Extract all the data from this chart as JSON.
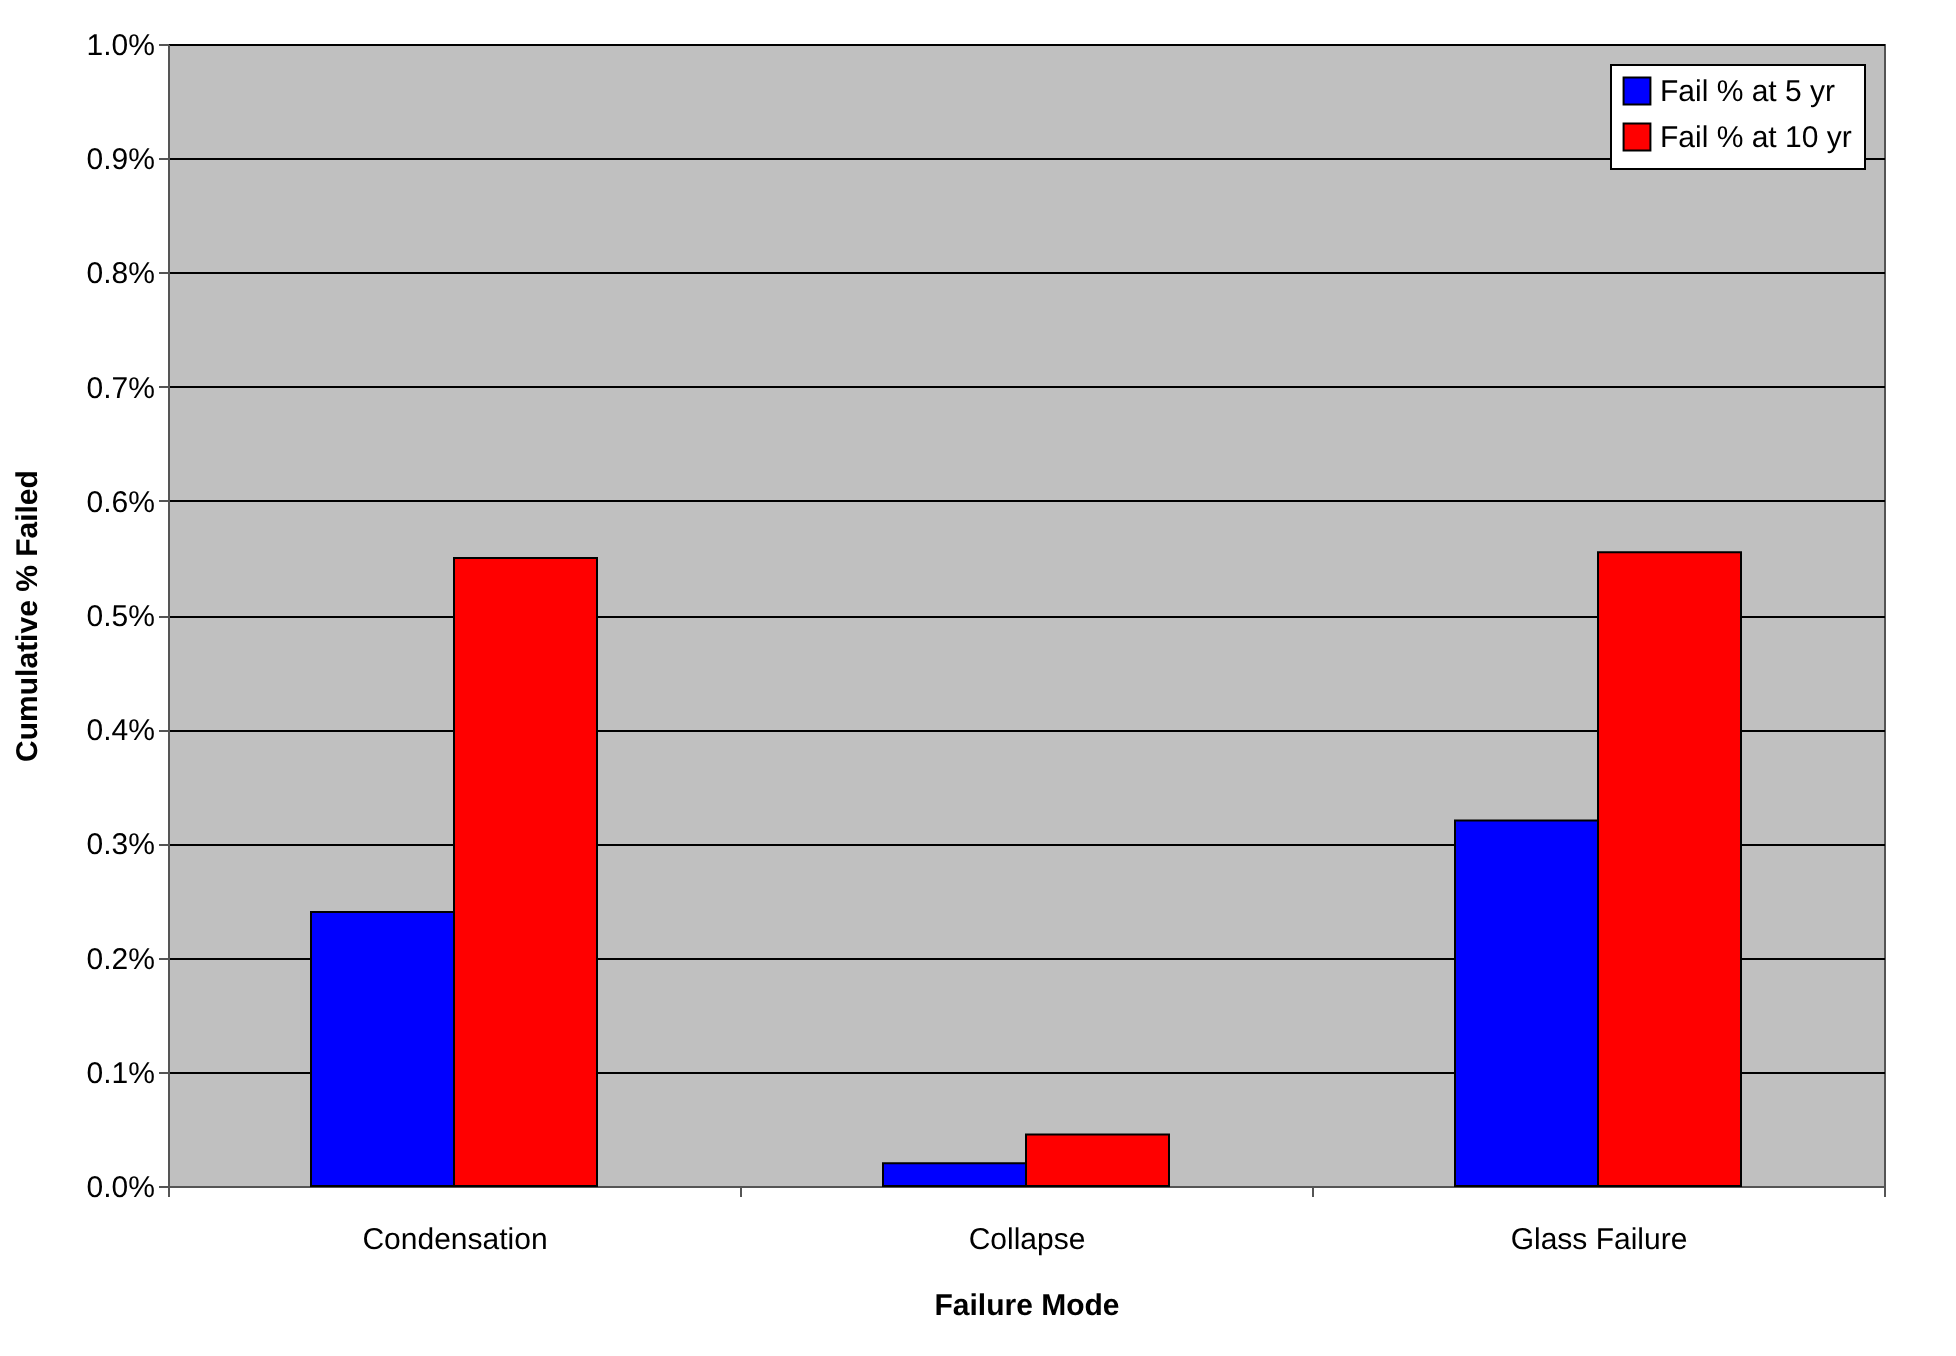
{
  "chart_data": {
    "type": "bar",
    "xlabel": "Failure Mode",
    "ylabel": "Cumulative % Failed",
    "categories": [
      "Condensation",
      "Collapse",
      "Glass Failure"
    ],
    "series": [
      {
        "name": "Fail % at 5 yr",
        "color": "#0000ff",
        "values": [
          0.24,
          0.02,
          0.32
        ]
      },
      {
        "name": "Fail % at 10 yr",
        "color": "#ff0000",
        "values": [
          0.55,
          0.045,
          0.555
        ]
      }
    ],
    "ylim": [
      0,
      1.0
    ],
    "yticks": [
      {
        "value": 0,
        "label": "0.0%"
      },
      {
        "value": 0.1,
        "label": "0.1%"
      },
      {
        "value": 0.2,
        "label": "0.2%"
      },
      {
        "value": 0.3,
        "label": "0.3%"
      },
      {
        "value": 0.4,
        "label": "0.4%"
      },
      {
        "value": 0.5,
        "label": "0.5%"
      },
      {
        "value": 0.6,
        "label": "0.6%"
      },
      {
        "value": 0.7,
        "label": "0.7%"
      },
      {
        "value": 0.8,
        "label": "0.8%"
      },
      {
        "value": 0.9,
        "label": "0.9%"
      },
      {
        "value": 1.0,
        "label": "1.0%"
      }
    ],
    "grid": "y",
    "legend": "top right"
  }
}
